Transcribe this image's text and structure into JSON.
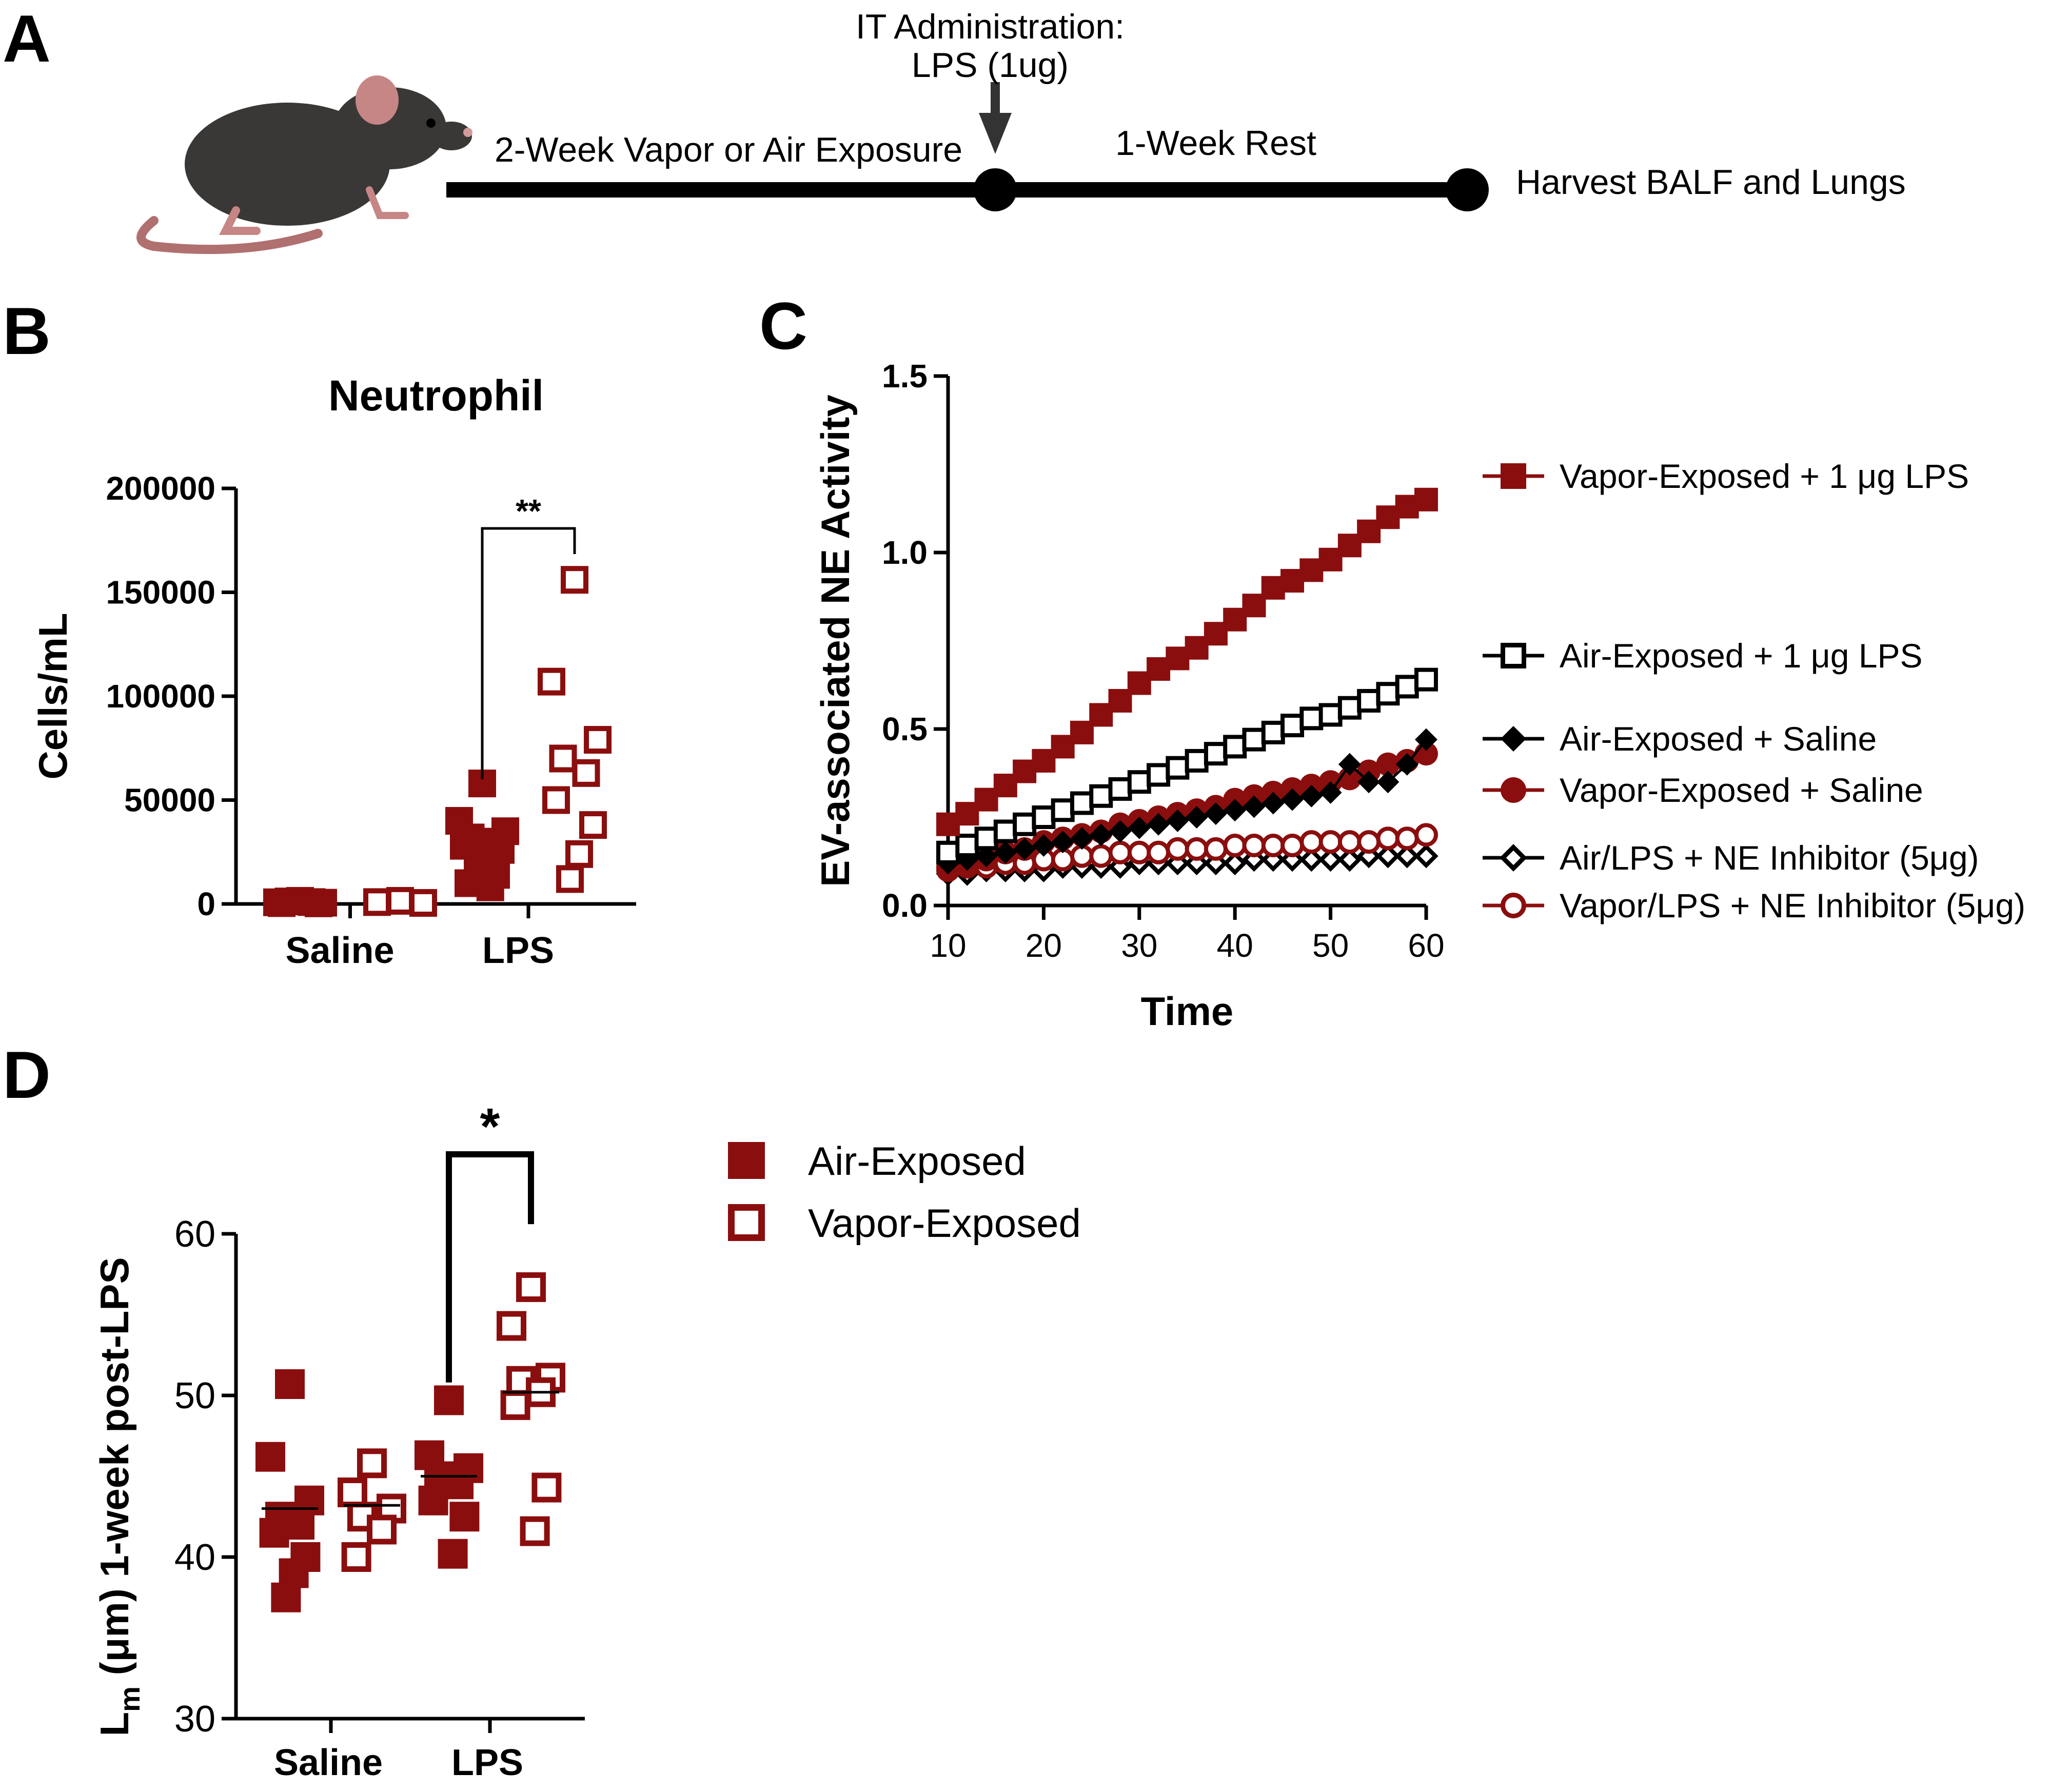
{
  "panels": {
    "a": "A",
    "b": "B",
    "c": "C",
    "d": "D"
  },
  "colors": {
    "dark_red": "#8b0e0e",
    "black": "#000000"
  },
  "timeline": {
    "exposure_label": "2-Week Vapor or Air Exposure",
    "admin_label_line1": "IT Administration:",
    "admin_label_line2": "LPS (1ug)",
    "rest_label": "1-Week Rest",
    "harvest_label": "Harvest BALF and Lungs",
    "icon": "mouse-illustration"
  },
  "chart_data": [
    {
      "id": "B",
      "type": "scatter",
      "title": "Neutrophil",
      "xlabel": "",
      "ylabel": "Cells/mL",
      "ylim": [
        0,
        200000
      ],
      "yticks": [
        0,
        50000,
        100000,
        150000,
        200000
      ],
      "yticklabels": [
        "0",
        "50000",
        "100000",
        "150000",
        "200000"
      ],
      "categories": [
        "Saline",
        "LPS"
      ],
      "series": [
        {
          "name": "Air-Exposed",
          "marker": "filled-square",
          "points": {
            "Saline": [
              1500,
              800,
              600,
              1200,
              900,
              400,
              300
            ],
            "LPS": [
              58000,
              40000,
              35000,
              32000,
              30000,
              28000,
              26000,
              22000,
              18000,
              14000,
              10000,
              8000
            ]
          }
        },
        {
          "name": "Vapor-Exposed",
          "marker": "open-square",
          "points": {
            "Saline": [
              1500,
              900,
              500
            ],
            "LPS": [
              156000,
              107000,
              79000,
              70000,
              63000,
              50000,
              38000,
              24000,
              12000
            ]
          }
        }
      ],
      "significance": "**"
    },
    {
      "id": "C",
      "type": "line",
      "title": "",
      "xlabel": "Time",
      "ylabel": "EV-associated NE Activity",
      "xlim": [
        10,
        60
      ],
      "ylim": [
        0,
        1.5
      ],
      "xticks": [
        10,
        20,
        30,
        40,
        50,
        60
      ],
      "yticks": [
        0.0,
        0.5,
        1.0,
        1.5
      ],
      "yticklabels": [
        "0.0",
        "0.5",
        "1.0",
        "1.5"
      ],
      "x": [
        10,
        12,
        14,
        16,
        18,
        20,
        22,
        24,
        26,
        28,
        30,
        32,
        34,
        36,
        38,
        40,
        42,
        44,
        46,
        48,
        50,
        52,
        54,
        56,
        58,
        60
      ],
      "series": [
        {
          "name": "Vapor-Exposed + 1 μg LPS",
          "marker": "filled-square",
          "color": "#8b0e0e",
          "values": [
            0.23,
            0.26,
            0.3,
            0.34,
            0.38,
            0.41,
            0.45,
            0.49,
            0.54,
            0.58,
            0.63,
            0.67,
            0.7,
            0.73,
            0.77,
            0.81,
            0.85,
            0.9,
            0.92,
            0.95,
            0.98,
            1.02,
            1.06,
            1.1,
            1.13,
            1.15
          ]
        },
        {
          "name": "Air-Exposed + 1 μg LPS",
          "marker": "open-square",
          "color": "#000000",
          "values": [
            0.15,
            0.17,
            0.19,
            0.21,
            0.23,
            0.25,
            0.27,
            0.29,
            0.31,
            0.33,
            0.35,
            0.37,
            0.39,
            0.41,
            0.43,
            0.45,
            0.47,
            0.49,
            0.51,
            0.53,
            0.54,
            0.56,
            0.58,
            0.6,
            0.62,
            0.64
          ]
        },
        {
          "name": "Air-Exposed + Saline",
          "marker": "filled-diamond",
          "color": "#000000",
          "values": [
            0.12,
            0.13,
            0.14,
            0.15,
            0.16,
            0.17,
            0.18,
            0.19,
            0.2,
            0.21,
            0.22,
            0.23,
            0.24,
            0.25,
            0.26,
            0.27,
            0.28,
            0.29,
            0.3,
            0.31,
            0.32,
            0.4,
            0.35,
            0.35,
            0.4,
            0.47
          ]
        },
        {
          "name": "Vapor-Exposed + Saline",
          "marker": "filled-circle",
          "color": "#8b0e0e",
          "values": [
            0.11,
            0.12,
            0.13,
            0.15,
            0.16,
            0.18,
            0.19,
            0.2,
            0.21,
            0.23,
            0.24,
            0.25,
            0.26,
            0.27,
            0.28,
            0.3,
            0.31,
            0.32,
            0.33,
            0.34,
            0.35,
            0.36,
            0.38,
            0.4,
            0.41,
            0.43
          ]
        },
        {
          "name": "Air/LPS + NE Inhibitor (5μg)",
          "marker": "open-diamond",
          "color": "#000000",
          "values": [
            0.09,
            0.09,
            0.1,
            0.1,
            0.1,
            0.1,
            0.11,
            0.11,
            0.11,
            0.11,
            0.12,
            0.12,
            0.12,
            0.12,
            0.12,
            0.12,
            0.13,
            0.13,
            0.13,
            0.13,
            0.13,
            0.13,
            0.14,
            0.14,
            0.14,
            0.14
          ]
        },
        {
          "name": "Vapor/LPS + NE Inhibitor (5μg)",
          "marker": "open-circle",
          "color": "#8b0e0e",
          "values": [
            0.1,
            0.11,
            0.11,
            0.12,
            0.12,
            0.13,
            0.13,
            0.14,
            0.14,
            0.15,
            0.15,
            0.15,
            0.16,
            0.16,
            0.16,
            0.17,
            0.17,
            0.17,
            0.17,
            0.18,
            0.18,
            0.18,
            0.18,
            0.19,
            0.19,
            0.2
          ]
        }
      ]
    },
    {
      "id": "D",
      "type": "scatter",
      "title": "",
      "xlabel": "",
      "ylabel_main": "L",
      "ylabel_sub": "m",
      "ylabel_rest": " (μm) 1-week post-LPS",
      "ylim": [
        30,
        60
      ],
      "yticks": [
        30,
        40,
        50,
        60
      ],
      "yticklabels": [
        "30",
        "40",
        "50",
        "60"
      ],
      "categories": [
        "Saline",
        "LPS"
      ],
      "series": [
        {
          "name": "Air-Exposed",
          "marker": "filled-square",
          "points": {
            "Saline": [
              50.7,
              46.2,
              43.5,
              42.5,
              42.0,
              41.5,
              40.0,
              39.0,
              37.5
            ],
            "LPS": [
              49.7,
              46.3,
              45.5,
              45.0,
              44.5,
              43.5,
              42.5,
              40.2
            ]
          }
        },
        {
          "name": "Vapor-Exposed",
          "marker": "open-square",
          "points": {
            "Saline": [
              45.8,
              44.0,
              43.0,
              42.5,
              41.7,
              40.0
            ],
            "LPS": [
              56.7,
              54.3,
              51.1,
              50.9,
              50.2,
              49.4,
              44.3,
              41.6
            ]
          }
        }
      ],
      "means": {
        "Air-Exposed": {
          "Saline": 43.0,
          "LPS": 45.0
        },
        "Vapor-Exposed": {
          "Saline": 43.2,
          "LPS": 50.2
        }
      },
      "significance": "*",
      "legend": [
        "Air-Exposed",
        "Vapor-Exposed"
      ]
    }
  ]
}
